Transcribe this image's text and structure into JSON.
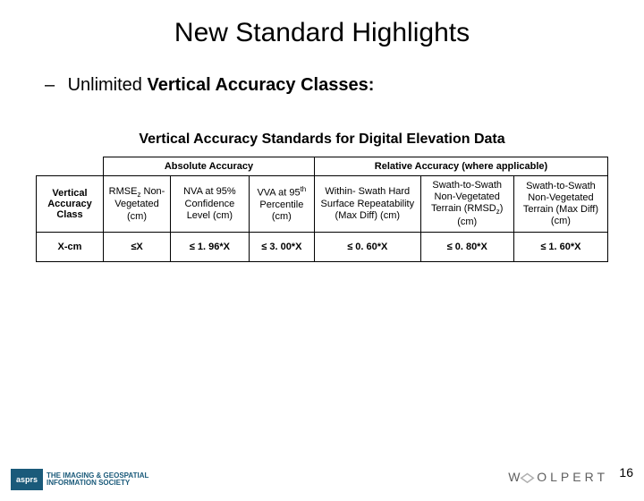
{
  "title": "New Standard Highlights",
  "bullet": {
    "dash": "–",
    "prefix": "Unlimited ",
    "bold": "Vertical Accuracy Classes:"
  },
  "subheading": "Vertical Accuracy Standards for Digital Elevation Data",
  "table": {
    "group_abs": "Absolute Accuracy",
    "group_rel": "Relative Accuracy (where applicable)",
    "row_header": "Vertical Accuracy Class",
    "col1": {
      "a": "RMSE",
      "sub": "z",
      "b": " Non-Vegetated (cm)"
    },
    "col2": "NVA at 95% Confidence Level (cm)",
    "col3": {
      "a": "VVA at 95",
      "sup": "th",
      "b": " Percentile (cm)"
    },
    "col4": "Within- Swath Hard Surface Repeatability (Max Diff) (cm)",
    "col5": {
      "a": "Swath-to-Swath Non-Vegetated Terrain (RMSD",
      "sub": "z",
      "b": ") (cm)"
    },
    "col6": "Swath-to-Swath Non-Vegetated Terrain (Max Diff) (cm)",
    "row": {
      "label": "X-cm",
      "c1": "≤X",
      "c2": "≤ 1. 96*X",
      "c3": "≤ 3. 00*X",
      "c4": "≤ 0. 60*X",
      "c5": "≤ 0. 80*X",
      "c6": "≤ 1. 60*X"
    }
  },
  "footer": {
    "asprs": "asprs",
    "asprs_line1": "THE IMAGING & GEOSPATIAL",
    "asprs_line2": "INFORMATION SOCIETY",
    "woolpert_pre": "W",
    "woolpert_post": "OLPERT",
    "pagenum": "16"
  }
}
